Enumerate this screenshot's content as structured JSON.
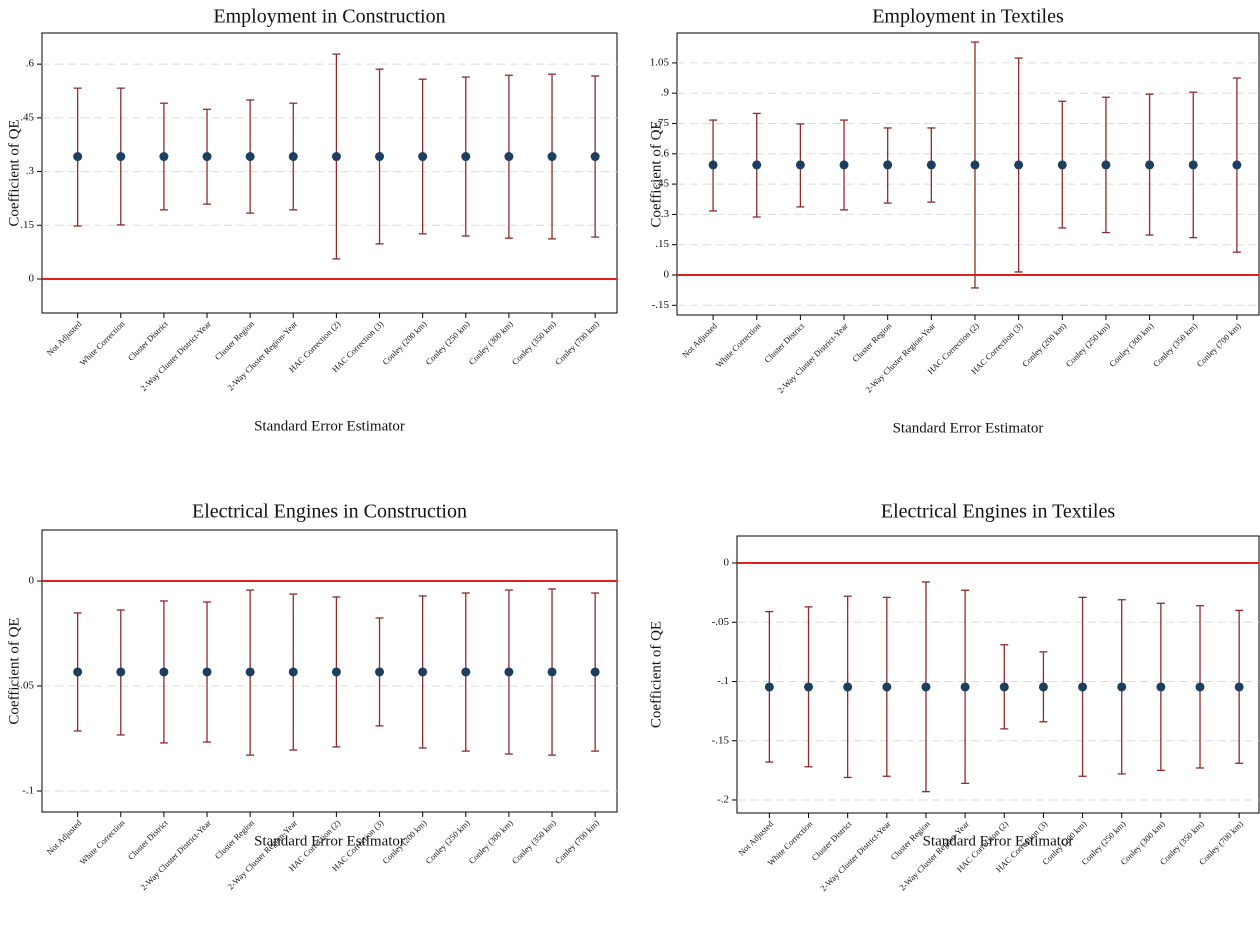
{
  "chart_data": [
    {
      "type": "errorbar",
      "title": "Employment in Construction",
      "xlabel": "Standard Error Estimator",
      "ylabel": "Coefficient of QE",
      "categories": [
        "Not Adjusted",
        "White Correction",
        "Cluster District",
        "2-Way Cluster District-Year",
        "Cluster Region",
        "2-Way Cluster Region-Year",
        "HAC Correction (2)",
        "HAC Correction (3)",
        "Conley (200 km)",
        "Conley (250 km)",
        "Conley (300 km)",
        "Conley (350 km)",
        "Conley (700 km)"
      ],
      "values": [
        0.342,
        0.342,
        0.342,
        0.342,
        0.342,
        0.342,
        0.342,
        0.342,
        0.342,
        0.342,
        0.342,
        0.342,
        0.342
      ],
      "lower": [
        0.148,
        0.151,
        0.193,
        0.209,
        0.184,
        0.193,
        0.056,
        0.098,
        0.126,
        0.12,
        0.114,
        0.112,
        0.117
      ],
      "upper": [
        0.533,
        0.533,
        0.491,
        0.474,
        0.5,
        0.491,
        0.628,
        0.586,
        0.558,
        0.564,
        0.569,
        0.572,
        0.567
      ],
      "ylim": [
        -0.095,
        0.687
      ],
      "yticks": [
        0,
        {
          "value": 0.15,
          "label": ".15"
        },
        {
          "value": 0.3,
          "label": ".3"
        },
        {
          "value": 0.45,
          "label": ".45"
        },
        {
          "value": 0.6,
          "label": ".6"
        }
      ],
      "hline": 0,
      "grid": true,
      "point_color": "#1c3f60",
      "bar_color": "#8e2b2b",
      "hline_color": "#e0201a"
    },
    {
      "type": "errorbar",
      "title": "Employment in Textiles",
      "xlabel": "Standard Error Estimator",
      "ylabel": "Coefficient of QE",
      "categories": [
        "Not Adjusted",
        "White Correction",
        "Cluster District",
        "2-Way Cluster District-Year",
        "Cluster Region",
        "2-Way Cluster Region-Year",
        "HAC Correction (2)",
        "HAC Correction (3)",
        "Conley (200 km)",
        "Conley (250 km)",
        "Conley (300 km)",
        "Conley (350 km)",
        "Conley (700 km)"
      ],
      "values": [
        0.545,
        0.545,
        0.545,
        0.545,
        0.545,
        0.545,
        0.545,
        0.545,
        0.545,
        0.545,
        0.545,
        0.545,
        0.545
      ],
      "lower": [
        0.317,
        0.287,
        0.337,
        0.322,
        0.356,
        0.361,
        -0.064,
        0.015,
        0.233,
        0.21,
        0.198,
        0.185,
        0.113
      ],
      "upper": [
        0.767,
        0.8,
        0.748,
        0.767,
        0.728,
        0.728,
        1.153,
        1.074,
        0.86,
        0.88,
        0.895,
        0.905,
        0.975
      ],
      "ylim": [
        -0.198,
        1.198
      ],
      "yticks": [
        {
          "value": -0.15,
          "label": "-.15"
        },
        0,
        {
          "value": 0.15,
          "label": ".15"
        },
        {
          "value": 0.3,
          "label": ".3"
        },
        {
          "value": 0.45,
          "label": ".45"
        },
        {
          "value": 0.6,
          "label": ".6"
        },
        {
          "value": 0.75,
          "label": ".75"
        },
        {
          "value": 0.9,
          "label": ".9"
        },
        1.05
      ],
      "hline": 0,
      "grid": true,
      "point_color": "#1c3f60",
      "bar_color": "#8e2b2b",
      "hline_color": "#e0201a"
    },
    {
      "type": "errorbar",
      "title": "Electrical Engines in Construction",
      "xlabel": "Standard Error Estimator",
      "ylabel": "Coefficient of QE",
      "categories": [
        "Not Adjusted",
        "White Correction",
        "Cluster District",
        "2-Way Cluster District-Year",
        "Cluster Region",
        "2-Way Cluster Region-Year",
        "HAC Correction (2)",
        "HAC Correction (3)",
        "Conley (200 km)",
        "Conley (250 km)",
        "Conley (300 km)",
        "Conley (350 km)",
        "Conley (700 km)"
      ],
      "values": [
        -0.0433,
        -0.0433,
        -0.0433,
        -0.0433,
        -0.0433,
        -0.0433,
        -0.0433,
        -0.0433,
        -0.0433,
        -0.0433,
        -0.0433,
        -0.0433,
        -0.0433
      ],
      "lower": [
        -0.0714,
        -0.0733,
        -0.0771,
        -0.0767,
        -0.0829,
        -0.0805,
        -0.079,
        -0.069,
        -0.0795,
        -0.081,
        -0.0824,
        -0.0829,
        -0.081
      ],
      "upper": [
        -0.0152,
        -0.0138,
        -0.0095,
        -0.01,
        -0.0043,
        -0.0062,
        -0.0076,
        -0.0176,
        -0.0071,
        -0.0057,
        -0.0043,
        -0.0038,
        -0.0057
      ],
      "ylim": [
        -0.11,
        0.0243
      ],
      "yticks": [
        {
          "value": -0.1,
          "label": "-.1"
        },
        {
          "value": -0.05,
          "label": "-.05"
        },
        0
      ],
      "hline": 0,
      "grid": true,
      "point_color": "#1c3f60",
      "bar_color": "#8e2b2b",
      "hline_color": "#e0201a"
    },
    {
      "type": "errorbar",
      "title": "Electrical Engines in Textiles",
      "xlabel": "Standard Error Estimator",
      "ylabel": "Coefficient of QE",
      "categories": [
        "Not Adjusted",
        "White Correction",
        "Cluster District",
        "2-Way Cluster District-Year",
        "Cluster Region",
        "2-Way Cluster Region-Year",
        "HAC Correction (2)",
        "HAC Correction (3)",
        "Conley (200 km)",
        "Conley (250 km)",
        "Conley (300 km)",
        "Conley (350 km)",
        "Conley (700 km)"
      ],
      "values": [
        -0.1046,
        -0.1046,
        -0.1046,
        -0.1046,
        -0.1046,
        -0.1046,
        -0.1046,
        -0.1046,
        -0.1046,
        -0.1046,
        -0.1046,
        -0.1046,
        -0.1046
      ],
      "lower": [
        -0.168,
        -0.172,
        -0.181,
        -0.18,
        -0.193,
        -0.186,
        -0.14,
        -0.134,
        -0.18,
        -0.178,
        -0.175,
        -0.173,
        -0.169
      ],
      "upper": [
        -0.041,
        -0.037,
        -0.028,
        -0.029,
        -0.016,
        -0.023,
        -0.069,
        -0.075,
        -0.029,
        -0.031,
        -0.034,
        -0.036,
        -0.04
      ],
      "ylim": [
        -0.211,
        0.0228
      ],
      "yticks": [
        {
          "value": -0.2,
          "label": "-.2"
        },
        {
          "value": -0.15,
          "label": "-.15"
        },
        {
          "value": -0.1,
          "label": "-.1"
        },
        {
          "value": -0.05,
          "label": "-.05"
        },
        0
      ],
      "hline": 0,
      "grid": true,
      "point_color": "#1c3f60",
      "bar_color": "#8e2b2b",
      "hline_color": "#e0201a"
    }
  ]
}
